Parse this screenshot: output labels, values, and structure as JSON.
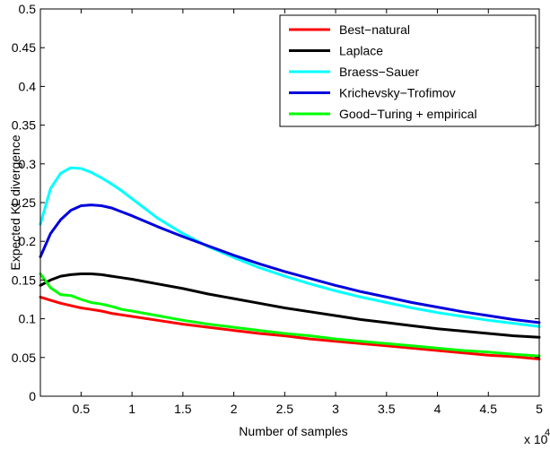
{
  "chart_data": {
    "type": "line",
    "xlabel": "Number of samples",
    "ylabel": "Expected KL divergence",
    "x_multiplier": "x 10",
    "x_multiplier_exp": "4",
    "xlim": [
      0.1,
      5.0
    ],
    "ylim": [
      0,
      0.5
    ],
    "grid": false,
    "legend_position": "top-right",
    "x_ticks": [
      0.5,
      1,
      1.5,
      2,
      2.5,
      3,
      3.5,
      4,
      4.5,
      5
    ],
    "x_tick_labels": [
      "0.5",
      "1",
      "1.5",
      "2",
      "2.5",
      "3",
      "3.5",
      "4",
      "4.5",
      "5"
    ],
    "y_ticks": [
      0,
      0.05,
      0.1,
      0.15,
      0.2,
      0.25,
      0.3,
      0.35,
      0.4,
      0.45,
      0.5
    ],
    "y_tick_labels": [
      "0",
      "0.05",
      "0.1",
      "0.15",
      "0.2",
      "0.25",
      "0.3",
      "0.35",
      "0.4",
      "0.45",
      "0.5"
    ],
    "x": [
      0.1,
      0.2,
      0.3,
      0.4,
      0.5,
      0.6,
      0.7,
      0.8,
      0.9,
      1.0,
      1.25,
      1.5,
      1.75,
      2.0,
      2.25,
      2.5,
      2.75,
      3.0,
      3.25,
      3.5,
      3.75,
      4.0,
      4.25,
      4.5,
      4.75,
      5.0
    ],
    "series": [
      {
        "name": "Best−natural",
        "color": "#ff0000",
        "values": [
          0.128,
          0.124,
          0.12,
          0.117,
          0.114,
          0.112,
          0.11,
          0.107,
          0.105,
          0.103,
          0.098,
          0.093,
          0.089,
          0.085,
          0.081,
          0.078,
          0.074,
          0.071,
          0.068,
          0.065,
          0.062,
          0.059,
          0.056,
          0.053,
          0.051,
          0.048
        ]
      },
      {
        "name": "Laplace",
        "color": "#000000",
        "values": [
          0.143,
          0.15,
          0.155,
          0.157,
          0.158,
          0.158,
          0.157,
          0.155,
          0.153,
          0.151,
          0.145,
          0.139,
          0.132,
          0.126,
          0.12,
          0.114,
          0.109,
          0.104,
          0.099,
          0.095,
          0.091,
          0.087,
          0.084,
          0.081,
          0.078,
          0.076
        ]
      },
      {
        "name": "Braess−Sauer",
        "color": "#00ffff",
        "values": [
          0.222,
          0.268,
          0.288,
          0.295,
          0.294,
          0.289,
          0.282,
          0.274,
          0.265,
          0.255,
          0.23,
          0.21,
          0.193,
          0.179,
          0.166,
          0.155,
          0.145,
          0.136,
          0.128,
          0.121,
          0.114,
          0.108,
          0.103,
          0.098,
          0.094,
          0.09
        ]
      },
      {
        "name": "Krichevsky−Trofimov",
        "color": "#0000dd",
        "values": [
          0.18,
          0.21,
          0.228,
          0.24,
          0.246,
          0.247,
          0.246,
          0.243,
          0.238,
          0.233,
          0.219,
          0.206,
          0.194,
          0.182,
          0.171,
          0.161,
          0.152,
          0.143,
          0.135,
          0.128,
          0.121,
          0.115,
          0.109,
          0.104,
          0.099,
          0.095
        ]
      },
      {
        "name": "Good−Turing + empirical",
        "color": "#00ff00",
        "values": [
          0.158,
          0.14,
          0.131,
          0.13,
          0.125,
          0.121,
          0.119,
          0.116,
          0.112,
          0.11,
          0.104,
          0.098,
          0.093,
          0.089,
          0.085,
          0.081,
          0.078,
          0.074,
          0.071,
          0.068,
          0.065,
          0.062,
          0.059,
          0.057,
          0.054,
          0.052
        ]
      }
    ]
  }
}
